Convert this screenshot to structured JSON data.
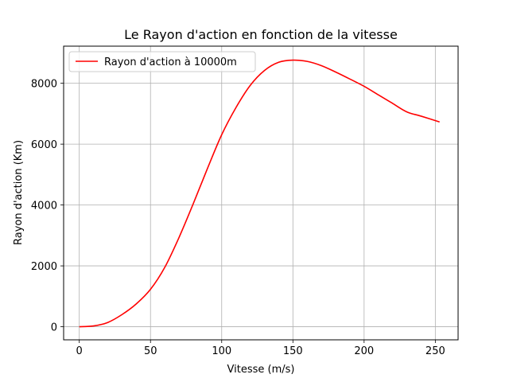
{
  "chart_data": {
    "type": "line",
    "title": "Le Rayon d'action en fonction de la vitesse",
    "xlabel": "Vitesse (m/s)",
    "ylabel": "Rayon d'action (Km)",
    "xlim": [
      -11,
      266
    ],
    "ylim": [
      -430,
      9220
    ],
    "xticks": [
      0,
      50,
      100,
      150,
      200,
      250
    ],
    "yticks": [
      0,
      2000,
      4000,
      6000,
      8000
    ],
    "grid": true,
    "legend_position": "upper-left",
    "series": [
      {
        "name": "Rayon d'action à 10000m",
        "color": "#ff0000",
        "x": [
          0,
          10,
          20,
          30,
          40,
          50,
          60,
          70,
          80,
          90,
          100,
          110,
          120,
          130,
          140,
          150,
          160,
          170,
          180,
          190,
          200,
          210,
          220,
          230,
          240,
          253
        ],
        "y": [
          0,
          25,
          140,
          400,
          750,
          1230,
          1950,
          2930,
          4040,
          5200,
          6310,
          7200,
          7930,
          8420,
          8690,
          8760,
          8720,
          8580,
          8370,
          8140,
          7900,
          7620,
          7340,
          7060,
          6920,
          6730
        ]
      }
    ]
  }
}
